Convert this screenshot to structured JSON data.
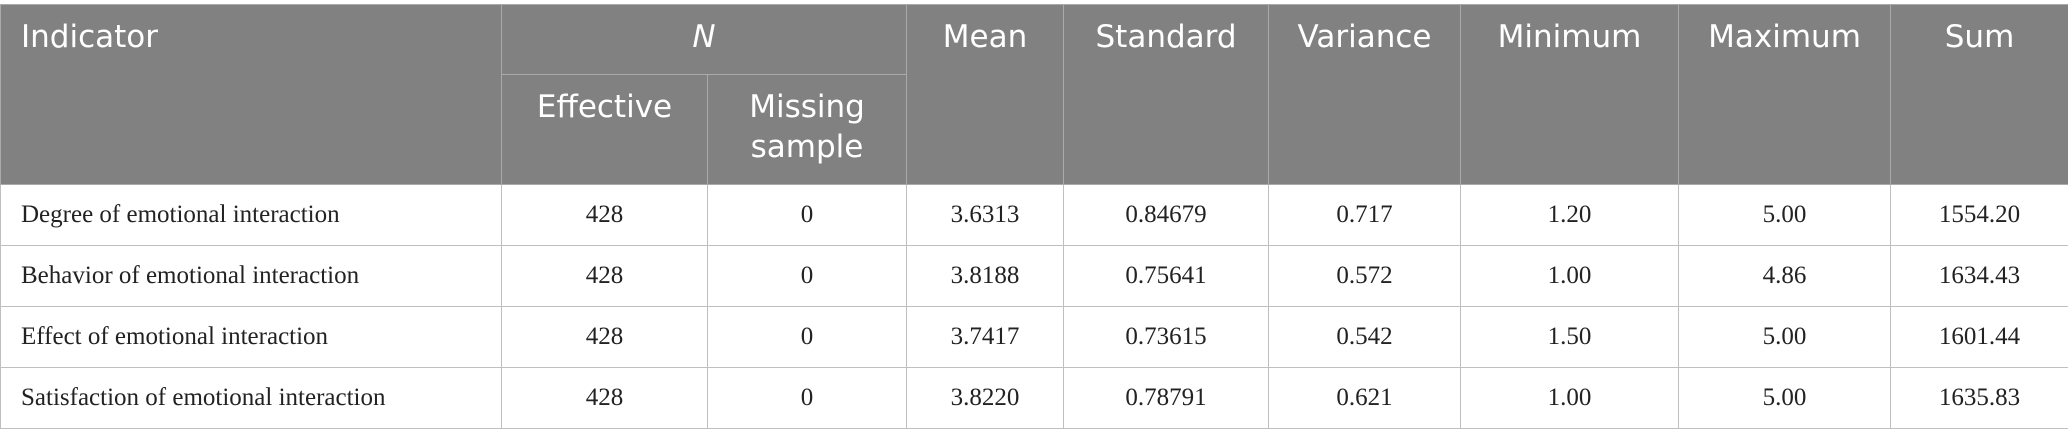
{
  "table": {
    "header": {
      "indicator": "Indicator",
      "n": "N",
      "effective": "Effective",
      "missing": "Missing sample",
      "mean": "Mean",
      "standard": "Standard",
      "variance": "Variance",
      "minimum": "Minimum",
      "maximum": "Maximum",
      "sum": "Sum"
    },
    "rows": [
      [
        "Degree of emotional interaction",
        "428",
        "0",
        "3.6313",
        "0.84679",
        "0.717",
        "1.20",
        "5.00",
        "1554.20"
      ],
      [
        "Behavior of emotional interaction",
        "428",
        "0",
        "3.8188",
        "0.75641",
        "0.572",
        "1.00",
        "4.86",
        "1634.43"
      ],
      [
        "Effect of emotional interaction",
        "428",
        "0",
        "3.7417",
        "0.73615",
        "0.542",
        "1.50",
        "5.00",
        "1601.44"
      ],
      [
        "Satisfaction of emotional interaction",
        "428",
        "0",
        "3.8220",
        "0.78791",
        "0.621",
        "1.00",
        "5.00",
        "1635.83"
      ]
    ]
  }
}
